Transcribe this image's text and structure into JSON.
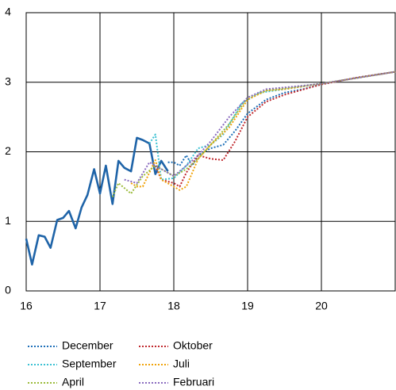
{
  "chart_data": {
    "type": "line",
    "xlim": [
      16,
      21
    ],
    "xticks": [
      16,
      17,
      18,
      19,
      20
    ],
    "ylim": [
      0,
      4
    ],
    "yticks": [
      0,
      1,
      2,
      3,
      4
    ],
    "grid": true,
    "legend": "bottom",
    "series": [
      {
        "color": "#1f64a8",
        "dash": false,
        "x": [
          16.0,
          16.08,
          16.17,
          16.25,
          16.33,
          16.42,
          16.5,
          16.58,
          16.67,
          16.75,
          16.83,
          16.92,
          17.0,
          17.08,
          17.17,
          17.25,
          17.33,
          17.42,
          17.5,
          17.58,
          17.67,
          17.75,
          17.83,
          17.92
        ],
        "values": [
          0.75,
          0.38,
          0.8,
          0.78,
          0.62,
          1.02,
          1.05,
          1.15,
          0.9,
          1.2,
          1.38,
          1.75,
          1.4,
          1.8,
          1.25,
          1.87,
          1.77,
          1.72,
          2.2,
          2.17,
          2.12,
          1.68,
          1.87,
          1.72
        ]
      },
      {
        "name": "December",
        "color": "#1d6fb8",
        "dash": true,
        "x": [
          17.92,
          18.0,
          18.08,
          18.17,
          18.25,
          18.33,
          18.5,
          18.67,
          18.83,
          19.0,
          19.25,
          19.5,
          19.75,
          20.0,
          20.5,
          21.0
        ],
        "values": [
          1.85,
          1.85,
          1.8,
          1.95,
          1.8,
          1.95,
          2.05,
          2.1,
          2.3,
          2.55,
          2.75,
          2.85,
          2.9,
          2.97,
          3.07,
          3.15
        ]
      },
      {
        "name": "Oktober",
        "color": "#c0282d",
        "dash": true,
        "x": [
          17.75,
          17.83,
          18.0,
          18.08,
          18.17,
          18.33,
          18.5,
          18.67,
          18.83,
          19.0,
          19.25,
          19.5,
          20.0,
          20.5,
          21.0
        ],
        "values": [
          1.8,
          1.6,
          1.55,
          1.5,
          1.7,
          1.95,
          1.9,
          1.88,
          2.15,
          2.5,
          2.72,
          2.82,
          2.97,
          3.07,
          3.15
        ]
      },
      {
        "name": "September",
        "color": "#3bc1d3",
        "dash": true,
        "x": [
          17.67,
          17.75,
          17.83,
          18.0,
          18.17,
          18.33,
          18.5,
          18.67,
          18.92,
          19.17,
          19.5,
          20.0,
          21.0
        ],
        "values": [
          2.12,
          2.25,
          1.6,
          1.62,
          1.8,
          2.05,
          2.1,
          2.25,
          2.7,
          2.85,
          2.9,
          2.98,
          3.15
        ]
      },
      {
        "name": "Juli",
        "color": "#f0a30a",
        "dash": true,
        "x": [
          17.42,
          17.5,
          17.58,
          17.75,
          17.83,
          18.0,
          18.08,
          18.17,
          18.33,
          18.5,
          18.75,
          19.0,
          19.25,
          19.5,
          20.0,
          21.0
        ],
        "values": [
          1.55,
          1.5,
          1.5,
          1.88,
          1.6,
          1.5,
          1.45,
          1.5,
          1.9,
          2.1,
          2.35,
          2.75,
          2.88,
          2.9,
          2.98,
          3.15
        ]
      },
      {
        "name": "April",
        "color": "#9bbb3b",
        "dash": true,
        "x": [
          17.17,
          17.25,
          17.42,
          17.58,
          17.75,
          18.0,
          18.17,
          18.33,
          18.5,
          18.75,
          19.0,
          19.25,
          20.0,
          21.0
        ],
        "values": [
          1.35,
          1.55,
          1.4,
          1.65,
          1.8,
          1.65,
          1.75,
          1.9,
          2.1,
          2.4,
          2.78,
          2.88,
          2.98,
          3.15
        ]
      },
      {
        "name": "Februari",
        "color": "#8a6bbf",
        "dash": true,
        "x": [
          17.33,
          17.5,
          17.67,
          18.0,
          18.17,
          18.33,
          18.5,
          18.75,
          19.0,
          19.25,
          19.75,
          20.0,
          21.0
        ],
        "values": [
          1.6,
          1.55,
          1.85,
          1.65,
          1.8,
          1.95,
          2.15,
          2.5,
          2.78,
          2.9,
          2.95,
          2.98,
          3.15
        ]
      }
    ]
  }
}
